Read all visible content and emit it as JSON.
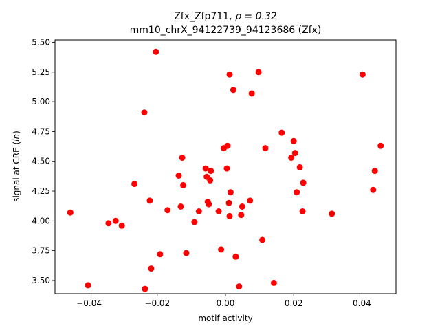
{
  "chart_data": {
    "type": "scatter",
    "title_line1": "Zfx_Zfp711, ",
    "title_rho": "ρ = 0.32",
    "title_line2": "mm10_chrX_94122739_94123686 (Zfx)",
    "xlabel": "motif activity",
    "ylabel_prefix": "signal at CRE (",
    "ylabel_ln": "ln",
    "ylabel_suffix": ")",
    "xlim": [
      -0.05,
      0.05
    ],
    "ylim": [
      3.39,
      5.52
    ],
    "xticks": [
      -0.04,
      -0.02,
      0.0,
      0.02,
      0.04
    ],
    "xtick_labels": [
      "−0.04",
      "−0.02",
      "0.00",
      "0.02",
      "0.04"
    ],
    "yticks": [
      3.5,
      3.75,
      4.0,
      4.25,
      4.5,
      4.75,
      5.0,
      5.25,
      5.5
    ],
    "ytick_labels": [
      "3.50",
      "3.75",
      "4.00",
      "4.25",
      "4.50",
      "4.75",
      "5.00",
      "5.25",
      "5.50"
    ],
    "grid": false,
    "marker_color": "#ff0000",
    "points": [
      {
        "x": -0.0455,
        "y": 4.07
      },
      {
        "x": -0.0403,
        "y": 3.46
      },
      {
        "x": -0.0343,
        "y": 3.98
      },
      {
        "x": -0.0322,
        "y": 4.0
      },
      {
        "x": -0.0304,
        "y": 3.96
      },
      {
        "x": -0.0267,
        "y": 4.31
      },
      {
        "x": -0.0238,
        "y": 4.91
      },
      {
        "x": -0.0236,
        "y": 3.43
      },
      {
        "x": -0.0222,
        "y": 4.17
      },
      {
        "x": -0.0218,
        "y": 3.6
      },
      {
        "x": -0.0204,
        "y": 5.42
      },
      {
        "x": -0.0192,
        "y": 3.72
      },
      {
        "x": -0.017,
        "y": 4.09
      },
      {
        "x": -0.0137,
        "y": 4.38
      },
      {
        "x": -0.0131,
        "y": 4.12
      },
      {
        "x": -0.0127,
        "y": 4.53
      },
      {
        "x": -0.0124,
        "y": 4.3
      },
      {
        "x": -0.0115,
        "y": 3.73
      },
      {
        "x": -0.0091,
        "y": 3.99
      },
      {
        "x": -0.0078,
        "y": 4.08
      },
      {
        "x": -0.0058,
        "y": 4.44
      },
      {
        "x": -0.0055,
        "y": 4.37
      },
      {
        "x": -0.0052,
        "y": 4.16
      },
      {
        "x": -0.0049,
        "y": 4.14
      },
      {
        "x": -0.0045,
        "y": 4.34
      },
      {
        "x": -0.0043,
        "y": 4.42
      },
      {
        "x": -0.002,
        "y": 4.08
      },
      {
        "x": -0.0013,
        "y": 3.76
      },
      {
        "x": -0.0005,
        "y": 4.61
      },
      {
        "x": 0.0004,
        "y": 4.44
      },
      {
        "x": 0.0006,
        "y": 4.63
      },
      {
        "x": 0.001,
        "y": 4.15
      },
      {
        "x": 0.0012,
        "y": 4.04
      },
      {
        "x": 0.0012,
        "y": 5.23
      },
      {
        "x": 0.0015,
        "y": 4.24
      },
      {
        "x": 0.0023,
        "y": 5.1
      },
      {
        "x": 0.003,
        "y": 3.7
      },
      {
        "x": 0.004,
        "y": 3.45
      },
      {
        "x": 0.0046,
        "y": 4.05
      },
      {
        "x": 0.0049,
        "y": 4.12
      },
      {
        "x": 0.0072,
        "y": 4.17
      },
      {
        "x": 0.0077,
        "y": 5.07
      },
      {
        "x": 0.0097,
        "y": 5.25
      },
      {
        "x": 0.0108,
        "y": 3.84
      },
      {
        "x": 0.0117,
        "y": 4.61
      },
      {
        "x": 0.0142,
        "y": 3.48
      },
      {
        "x": 0.0165,
        "y": 4.74
      },
      {
        "x": 0.0193,
        "y": 4.53
      },
      {
        "x": 0.02,
        "y": 4.67
      },
      {
        "x": 0.0204,
        "y": 4.57
      },
      {
        "x": 0.0209,
        "y": 4.24
      },
      {
        "x": 0.0218,
        "y": 4.45
      },
      {
        "x": 0.0226,
        "y": 4.08
      },
      {
        "x": 0.0228,
        "y": 4.32
      },
      {
        "x": 0.0312,
        "y": 4.06
      },
      {
        "x": 0.0402,
        "y": 5.23
      },
      {
        "x": 0.0433,
        "y": 4.26
      },
      {
        "x": 0.0438,
        "y": 4.42
      },
      {
        "x": 0.0455,
        "y": 4.63
      }
    ]
  }
}
